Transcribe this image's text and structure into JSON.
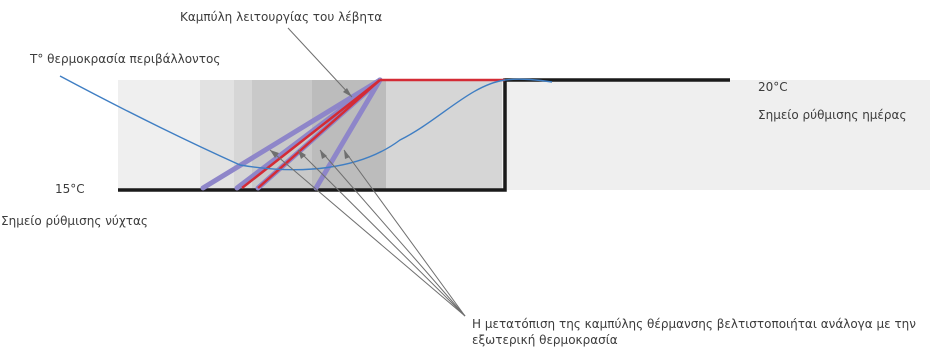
{
  "labels": {
    "boiler_curve": "Καμπύλη λειτουργίας του λέβητα",
    "ambient_temp": "T° θερμοκρασία περιβάλλοντος",
    "day_temp": "20°C",
    "day_setpoint": "Σημείο ρύθμισης ημέρας",
    "night_temp": "15°C",
    "night_setpoint": "Σημείο ρύθμισης νύχτας",
    "curve_shift": "Η μετατόπιση της καμπύλης θέρμανσης βελτιστοποιήται ανάλογα με την εξωτερική θερμοκρασία"
  },
  "colors": {
    "setpoint_line": "#1a1a1a",
    "heating_curve": "#d42b35",
    "shifted_curves": "#8e86c9",
    "ambient_curve": "#3f7ec3",
    "pointer": "#6f6f6f",
    "zone_light": "#ececec",
    "zone_mid": "#d7d7d7",
    "zone_dark": "#c3c3c3"
  }
}
